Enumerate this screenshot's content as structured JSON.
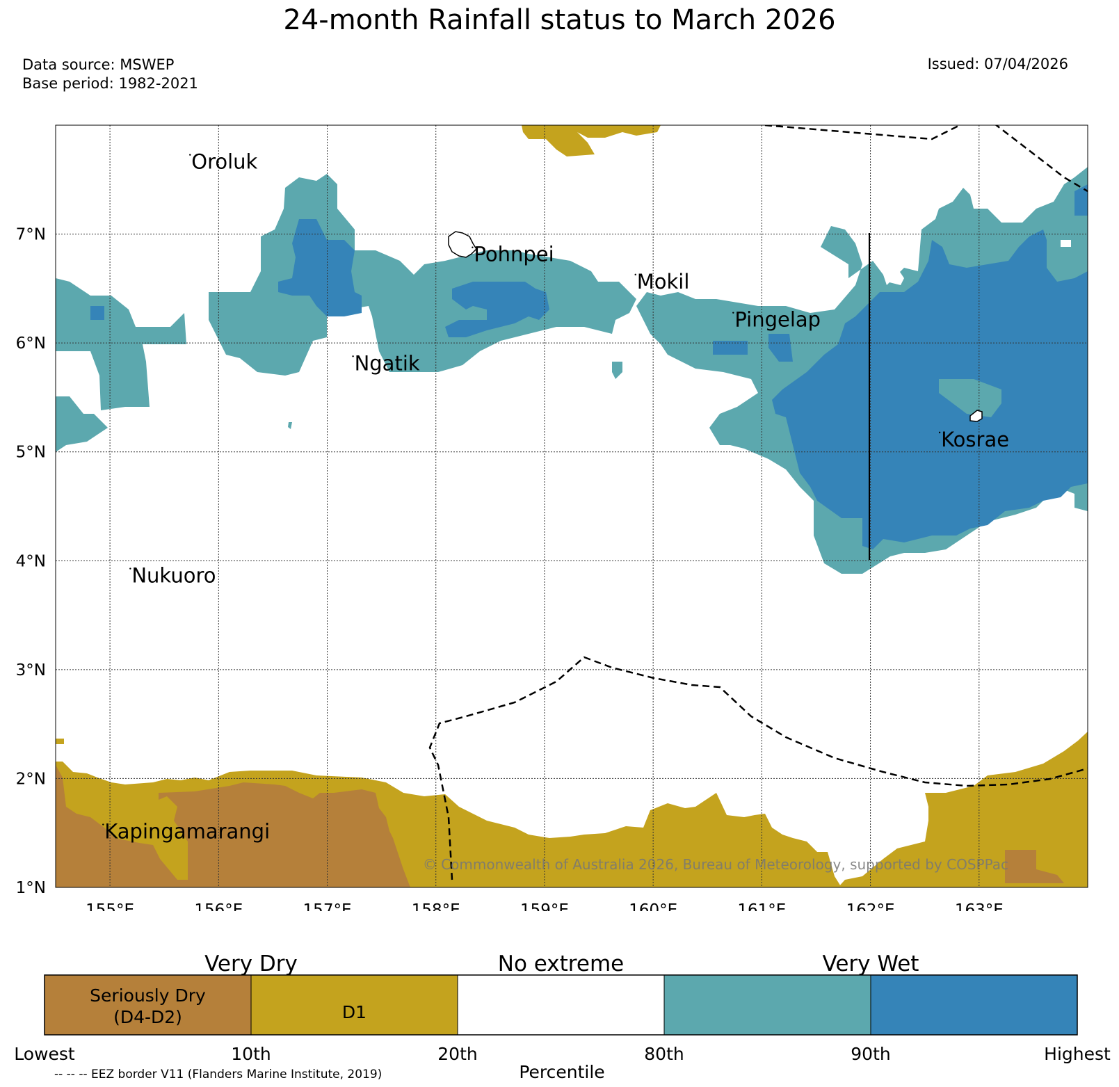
{
  "header": {
    "title": "24-month Rainfall status to March 2026",
    "data_source": "Data source: MSWEP",
    "base_period": "Base period: 1982-2021",
    "issued": "Issued: 07/04/2026"
  },
  "map": {
    "lon_range": [
      154.5,
      164.0
    ],
    "lat_range": [
      1.0,
      8.0
    ],
    "x_ticks": [
      {
        "value": 155,
        "label": "155°E"
      },
      {
        "value": 156,
        "label": "156°E"
      },
      {
        "value": 157,
        "label": "157°E"
      },
      {
        "value": 158,
        "label": "158°E"
      },
      {
        "value": 159,
        "label": "159°E"
      },
      {
        "value": 160,
        "label": "160°E"
      },
      {
        "value": 161,
        "label": "161°E"
      },
      {
        "value": 162,
        "label": "162°E"
      },
      {
        "value": 163,
        "label": "163°E"
      }
    ],
    "y_ticks": [
      {
        "value": 1,
        "label": "1°N"
      },
      {
        "value": 2,
        "label": "2°N"
      },
      {
        "value": 3,
        "label": "3°N"
      },
      {
        "value": 4,
        "label": "4°N"
      },
      {
        "value": 5,
        "label": "5°N"
      },
      {
        "value": 6,
        "label": "6°N"
      },
      {
        "value": 7,
        "label": "7°N"
      }
    ],
    "places": [
      {
        "name": "Oroluk",
        "lon": 155.75,
        "lat": 7.6
      },
      {
        "name": "Pohnpei",
        "lon": 158.35,
        "lat": 6.75
      },
      {
        "name": "Mokil",
        "lon": 159.85,
        "lat": 6.5
      },
      {
        "name": "Pingelap",
        "lon": 160.75,
        "lat": 6.15
      },
      {
        "name": "Ngatik",
        "lon": 157.25,
        "lat": 5.75
      },
      {
        "name": "Kosrae",
        "lon": 162.65,
        "lat": 5.05
      },
      {
        "name": "Nukuoro",
        "lon": 155.2,
        "lat": 3.8
      },
      {
        "name": "Kapingamarangi",
        "lon": 154.95,
        "lat": 1.45
      }
    ],
    "copyright": "© Commonwealth of Australia 2026, Bureau of Meteorology, supported by COSPPac"
  },
  "legend": {
    "group_labels": [
      "Very Dry",
      "No extreme",
      "Very Wet"
    ],
    "categories": [
      {
        "label": "Seriously Dry\n(D4-D2)",
        "color": "#b5803a"
      },
      {
        "label": "D1",
        "color": "#c4a31e"
      },
      {
        "label": "",
        "color": "#ffffff"
      },
      {
        "label": "",
        "color": "#5ca8ae"
      },
      {
        "label": "",
        "color": "#3584b8"
      }
    ],
    "percentile_ticks": [
      "Lowest",
      "10th",
      "20th",
      "80th",
      "90th",
      "Highest"
    ],
    "axis_label": "Percentile",
    "eez_note": "-- -- -- EEZ border V11 (Flanders Marine Institute, 2019)"
  },
  "colors": {
    "seriously_dry": "#b5803a",
    "d1": "#c4a31e",
    "very_wet_light": "#5ca8ae",
    "very_wet_dark": "#3584b8"
  }
}
